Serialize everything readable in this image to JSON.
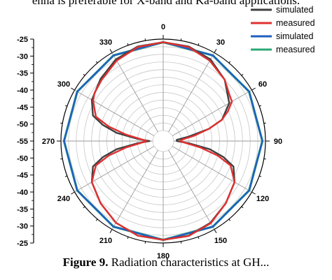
{
  "header_text": "enna is preferable for X-band and Ka-band applications.",
  "caption": {
    "label": "Figure 9.",
    "text": " Radiation characteristics at GH..."
  },
  "chart_data": {
    "type": "polar",
    "r_axis": {
      "min": -55,
      "max": -25,
      "ticks": [
        -25,
        -30,
        -35,
        -40,
        -45,
        -50,
        -55,
        -50,
        -45,
        -40,
        -35,
        -30,
        -25
      ]
    },
    "angle_ticks": [
      "0",
      "30",
      "60",
      "90",
      "120",
      "150",
      "180",
      "210",
      "240",
      "270",
      "300",
      "330"
    ],
    "grid": true,
    "legend_position": "top-right",
    "series": [
      {
        "name": "simulated",
        "color": "#404040",
        "theta": [
          0,
          15,
          30,
          45,
          60,
          70,
          75,
          80,
          85,
          90,
          95,
          100,
          105,
          110,
          120,
          135,
          150,
          165,
          180,
          195,
          210,
          225,
          240,
          250,
          255,
          260,
          265,
          270,
          275,
          280,
          285,
          290,
          300,
          315,
          330,
          345,
          360
        ],
        "r": [
          -26,
          -26.3,
          -27.5,
          -30,
          -33.5,
          -38,
          -43,
          -50,
          -54,
          -54,
          -50,
          -43,
          -38,
          -34,
          -31.5,
          -29.5,
          -27.5,
          -26.3,
          -26,
          -26.3,
          -27.5,
          -29.5,
          -31.5,
          -34,
          -38,
          -43,
          -50,
          -54,
          -50,
          -43,
          -38,
          -34,
          -31.5,
          -29.5,
          -27.5,
          -26.3,
          -26
        ]
      },
      {
        "name": "measured",
        "color": "#e03030",
        "theta": [
          0,
          15,
          30,
          45,
          55,
          60,
          65,
          70,
          75,
          80,
          85,
          90,
          95,
          100,
          105,
          110,
          120,
          135,
          150,
          165,
          180,
          195,
          210,
          225,
          240,
          250,
          255,
          260,
          265,
          270,
          275,
          280,
          285,
          290,
          300,
          305,
          315,
          330,
          345,
          360
        ],
        "r": [
          -26,
          -26.5,
          -28,
          -30,
          -32,
          -32.5,
          -35,
          -38,
          -43,
          -48,
          -52,
          -53,
          -51,
          -46,
          -40,
          -35,
          -31.5,
          -29.5,
          -27.3,
          -26.2,
          -26,
          -26.3,
          -27.5,
          -29.5,
          -31.5,
          -35,
          -40,
          -46,
          -51,
          -53,
          -51,
          -46,
          -40,
          -35,
          -32,
          -31,
          -30,
          -28,
          -26.5,
          -26
        ]
      },
      {
        "name": "simulated",
        "color": "#1f5fbf",
        "theta": [
          0,
          30,
          60,
          90,
          120,
          150,
          180,
          210,
          240,
          270,
          300,
          330,
          360
        ],
        "r": [
          -26,
          -26,
          -26,
          -26,
          -26,
          -26,
          -26,
          -26,
          -26,
          -26,
          -26,
          -26,
          -26
        ]
      },
      {
        "name": "measured",
        "color": "#2aa876",
        "theta": [
          0,
          30,
          60,
          90,
          120,
          150,
          180,
          210,
          240,
          270,
          300,
          330,
          360
        ],
        "r": [
          -26,
          -26,
          -26,
          -26,
          -26,
          -26,
          -26,
          -26,
          -26,
          -26,
          -26,
          -26,
          -26
        ]
      }
    ]
  }
}
